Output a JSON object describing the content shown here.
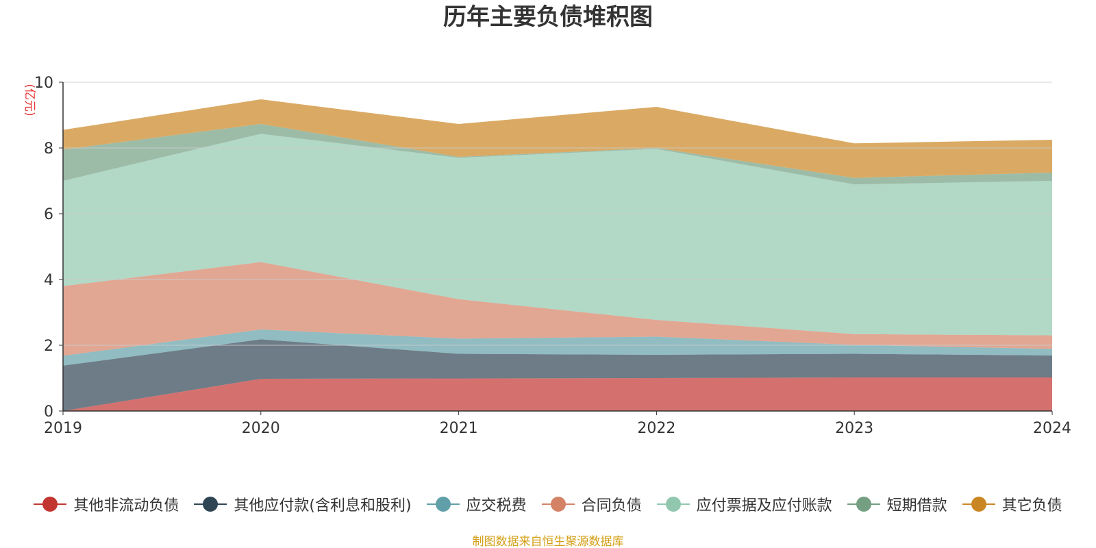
{
  "chart_data": {
    "type": "area",
    "stacked": true,
    "title": "历年主要负债堆积图",
    "ylabel": "(亿元)",
    "xlabel": "",
    "x": [
      "2019",
      "2020",
      "2021",
      "2022",
      "2023",
      "2024"
    ],
    "ylim": [
      0,
      10
    ],
    "yticks": [
      "0",
      "2",
      "4",
      "6",
      "8",
      "10"
    ],
    "grid": true,
    "legend_position": "bottom",
    "series": [
      {
        "name": "其他非流动负债",
        "color": "#c23531",
        "values": [
          0.0,
          0.98,
          0.99,
          1.0,
          1.02,
          1.02
        ]
      },
      {
        "name": "其他应付款(含利息和股利)",
        "color": "#2f4554",
        "values": [
          1.38,
          1.2,
          0.75,
          0.71,
          0.72,
          0.67
        ]
      },
      {
        "name": "应交税费",
        "color": "#61a0a8",
        "values": [
          0.3,
          0.3,
          0.46,
          0.55,
          0.27,
          0.2
        ]
      },
      {
        "name": "合同负债",
        "color": "#d48265",
        "values": [
          2.12,
          2.05,
          1.2,
          0.51,
          0.33,
          0.41
        ]
      },
      {
        "name": "应付票据及应付账款",
        "color": "#91c7ae",
        "values": [
          3.2,
          3.9,
          4.3,
          5.2,
          4.55,
          4.7
        ]
      },
      {
        "name": "短期借款",
        "color": "#749f83",
        "values": [
          0.95,
          0.3,
          0.03,
          0.03,
          0.2,
          0.25
        ]
      },
      {
        "name": "其它负债",
        "color": "#ca8622",
        "values": [
          0.6,
          0.75,
          1.0,
          1.25,
          1.05,
          1.0
        ]
      }
    ]
  },
  "source_note": "制图数据来自恒生聚源数据库"
}
